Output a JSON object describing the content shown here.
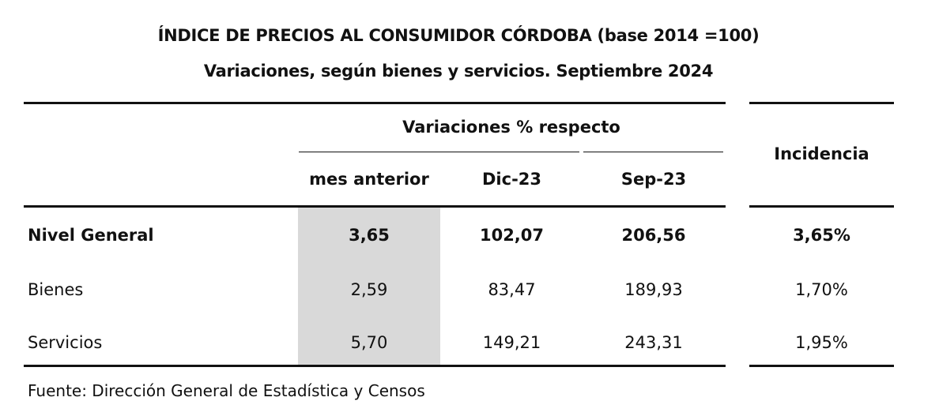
{
  "title": "ÍNDICE DE PRECIOS AL CONSUMIDOR CÓRDOBA (base 2014 =100)",
  "subtitle": "Variaciones, según bienes y servicios. Septiembre 2024",
  "header": {
    "group_label": "Variaciones % respecto",
    "columns": [
      "mes anterior",
      "Dic-23",
      "Sep-23"
    ],
    "incidence_label": "Incidencia"
  },
  "rows": [
    {
      "label": "Nivel General",
      "values": [
        "3,65",
        "102,07",
        "206,56",
        "3,65%"
      ]
    },
    {
      "label": "Bienes",
      "values": [
        "2,59",
        "83,47",
        "189,93",
        "1,70%"
      ]
    },
    {
      "label": "Servicios",
      "values": [
        "5,70",
        "149,21",
        "243,31",
        "1,95%"
      ]
    }
  ],
  "source": "Fuente: Dirección General de Estadística y Censos",
  "colors": {
    "highlight_column": "#d9d9d9",
    "rules": "#111111"
  }
}
